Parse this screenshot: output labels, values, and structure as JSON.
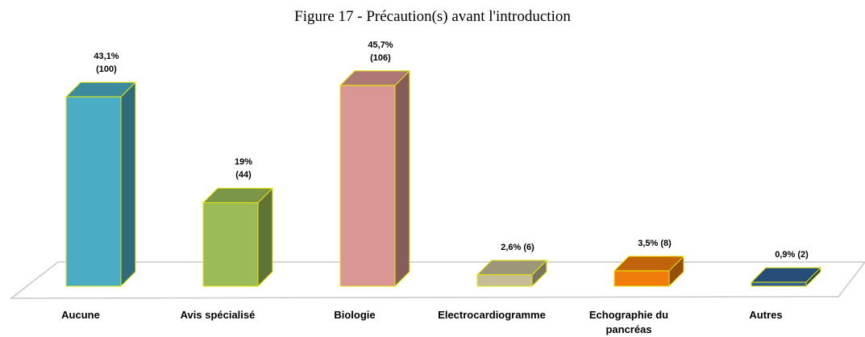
{
  "chart_data": {
    "type": "bar3d",
    "title": "Figure 17 - Précaution(s) avant l'introduction",
    "categories": [
      "Aucune",
      "Avis spécialisé",
      "Biologie",
      "Electrocardiogramme",
      "Echographie du pancréas",
      "Autres"
    ],
    "values": [
      43.1,
      19,
      45.7,
      2.6,
      3.5,
      0.9
    ],
    "value_labels": [
      "43,1%\n(100)",
      "19%\n(44)",
      "45,7%\n(106)",
      "2,6% (6)",
      "3,5% (8)",
      "0,9% (2)"
    ],
    "colors": [
      "#4bacc6",
      "#9bbb59",
      "#d99694",
      "#c4bd97",
      "#f07c0c",
      "#2f5f96"
    ]
  }
}
